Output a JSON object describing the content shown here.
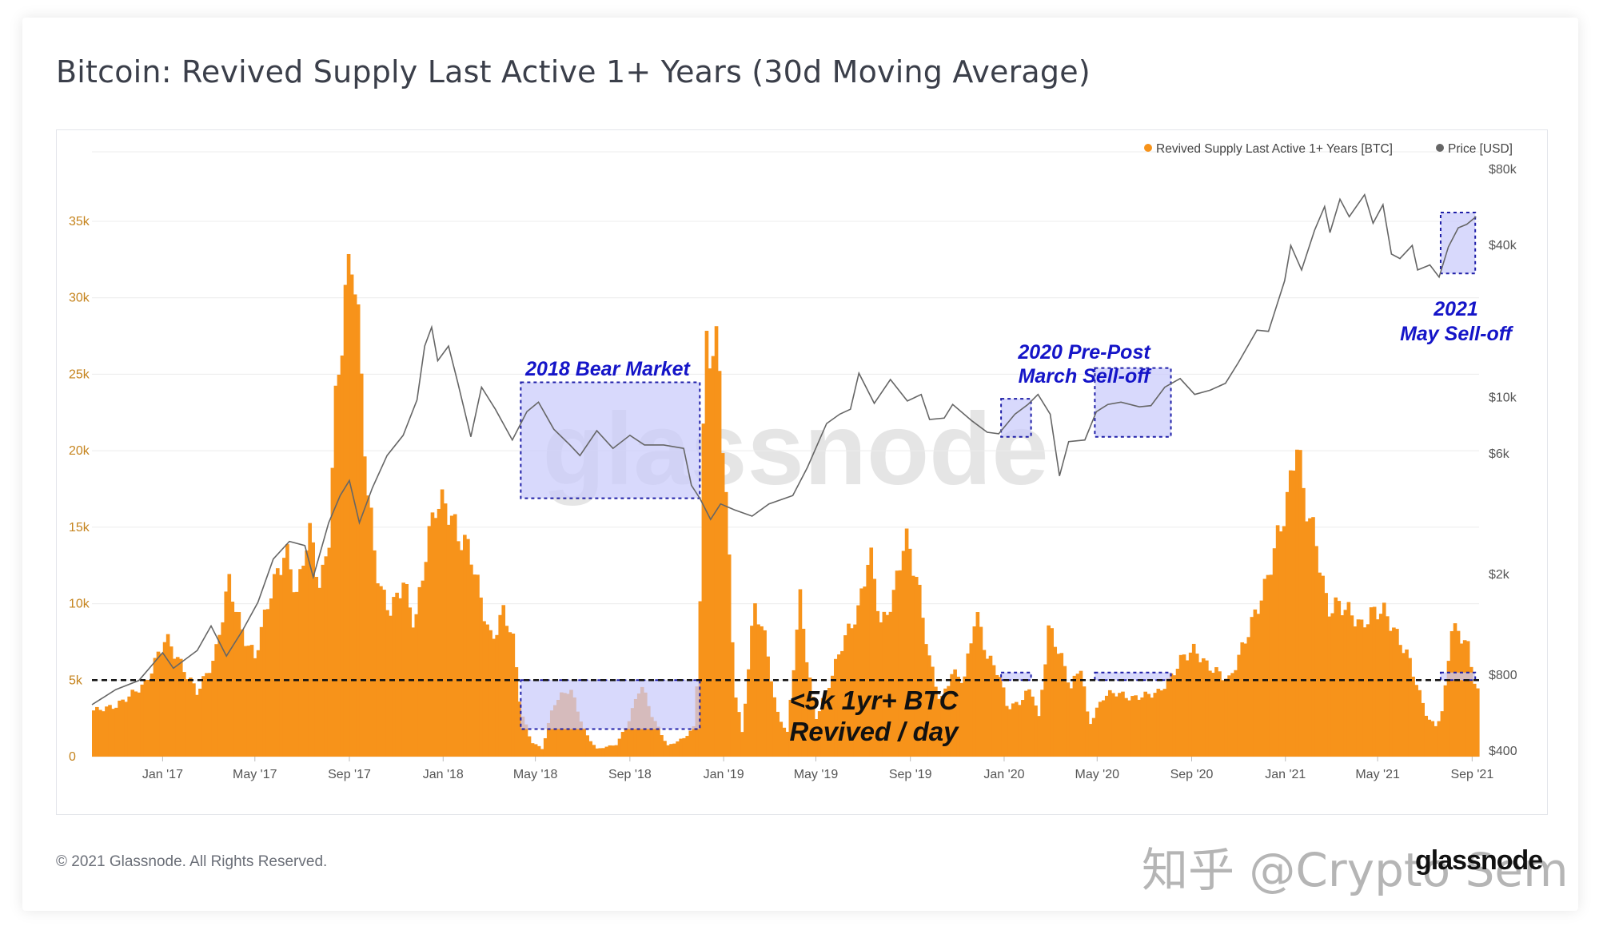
{
  "page": {
    "title": "Bitcoin: Revived Supply Last Active 1+ Years (30d Moving Average)",
    "footer": "© 2021 Glassnode. All Rights Reserved.",
    "watermark": "glassnode",
    "brand_logo": "glassnode",
    "overlay_watermark": "知乎 @Crypto Sem"
  },
  "colors": {
    "supply": "#f7931a",
    "price": "#666666",
    "box_fill": "#c9cbfb",
    "box_stroke": "#1f1fa8",
    "annotation": "#1515c8",
    "axis_left": "#c5831c",
    "axis": "#555555",
    "grid": "#ececec"
  },
  "chart_data": {
    "type": "bar",
    "title": "Bitcoin: Revived Supply Last Active 1+ Years (30d Moving Average)",
    "legend": {
      "placement": "top-right",
      "entries": [
        "Revived Supply Last Active 1+ Years [BTC]",
        "Price [USD]"
      ]
    },
    "x_ticks": [
      "Jan '17",
      "May '17",
      "Sep '17",
      "Jan '18",
      "May '18",
      "Sep '18",
      "Jan '19",
      "May '19",
      "Sep '19",
      "Jan '20",
      "May '20",
      "Sep '20",
      "Jan '21",
      "May '21",
      "Sep '21"
    ],
    "x_range": [
      "2016-10-01",
      "2021-09-10"
    ],
    "y_left": {
      "ticks": [
        "0",
        "5k",
        "10k",
        "15k",
        "20k",
        "25k",
        "30k",
        "35k"
      ],
      "range": [
        0,
        35000
      ]
    },
    "y_right": {
      "scale": "log",
      "ticks": [
        "$400",
        "$800",
        "$2k",
        "$6k",
        "$10k",
        "$40k",
        "$80k"
      ],
      "range": [
        400,
        80000
      ]
    },
    "threshold": {
      "value": 5000,
      "style": "dashed",
      "label_lines": [
        "<5k 1yr+ BTC",
        "Revived / day"
      ]
    },
    "series": [
      {
        "name": "Revived Supply Last Active 1+ Years [BTC]",
        "type": "bar",
        "points": [
          [
            "2016-10-01",
            3000
          ],
          [
            "2016-11-01",
            3300
          ],
          [
            "2016-12-10",
            4800
          ],
          [
            "2017-01-05",
            7800
          ],
          [
            "2017-01-25",
            6000
          ],
          [
            "2017-02-15",
            4200
          ],
          [
            "2017-03-10",
            6500
          ],
          [
            "2017-03-28",
            11500
          ],
          [
            "2017-04-15",
            8000
          ],
          [
            "2017-05-01",
            6500
          ],
          [
            "2017-05-20",
            10500
          ],
          [
            "2017-06-10",
            13500
          ],
          [
            "2017-06-25",
            10500
          ],
          [
            "2017-07-10",
            15000
          ],
          [
            "2017-07-25",
            11000
          ],
          [
            "2017-08-05",
            14000
          ],
          [
            "2017-08-15",
            24000
          ],
          [
            "2017-08-28",
            30500
          ],
          [
            "2017-09-05",
            33500
          ],
          [
            "2017-09-15",
            26000
          ],
          [
            "2017-09-25",
            17000
          ],
          [
            "2017-10-10",
            11000
          ],
          [
            "2017-10-25",
            9500
          ],
          [
            "2017-11-10",
            11500
          ],
          [
            "2017-11-25",
            8500
          ],
          [
            "2017-12-10",
            13500
          ],
          [
            "2017-12-22",
            16500
          ],
          [
            "2018-01-05",
            16500
          ],
          [
            "2018-01-20",
            14500
          ],
          [
            "2018-02-05",
            13500
          ],
          [
            "2018-02-20",
            10000
          ],
          [
            "2018-03-05",
            7500
          ],
          [
            "2018-03-20",
            9500
          ],
          [
            "2018-04-01",
            8000
          ],
          [
            "2018-04-12",
            3000
          ],
          [
            "2018-04-25",
            1000
          ],
          [
            "2018-05-10",
            500
          ],
          [
            "2018-05-25",
            3500
          ],
          [
            "2018-06-15",
            4500
          ],
          [
            "2018-07-05",
            1500
          ],
          [
            "2018-07-20",
            500
          ],
          [
            "2018-08-15",
            800
          ],
          [
            "2018-09-01",
            2500
          ],
          [
            "2018-09-15",
            4800
          ],
          [
            "2018-10-01",
            2500
          ],
          [
            "2018-10-20",
            700
          ],
          [
            "2018-11-10",
            1200
          ],
          [
            "2018-11-25",
            2000
          ],
          [
            "2018-12-01",
            10000
          ],
          [
            "2018-12-08",
            27000
          ],
          [
            "2018-12-25",
            26500
          ],
          [
            "2019-01-05",
            16000
          ],
          [
            "2019-01-15",
            4500
          ],
          [
            "2019-01-25",
            1500
          ],
          [
            "2019-02-10",
            10000
          ],
          [
            "2019-02-25",
            7500
          ],
          [
            "2019-03-10",
            3000
          ],
          [
            "2019-03-25",
            1500
          ],
          [
            "2019-04-10",
            10500
          ],
          [
            "2019-04-20",
            6000
          ],
          [
            "2019-05-01",
            2500
          ],
          [
            "2019-05-20",
            5000
          ],
          [
            "2019-06-05",
            7500
          ],
          [
            "2019-06-25",
            9500
          ],
          [
            "2019-07-10",
            13500
          ],
          [
            "2019-07-25",
            8500
          ],
          [
            "2019-08-10",
            10500
          ],
          [
            "2019-08-25",
            14500
          ],
          [
            "2019-09-10",
            11500
          ],
          [
            "2019-09-25",
            6500
          ],
          [
            "2019-10-10",
            3500
          ],
          [
            "2019-10-25",
            5500
          ],
          [
            "2019-11-10",
            5000
          ],
          [
            "2019-11-25",
            9500
          ],
          [
            "2019-12-10",
            6500
          ],
          [
            "2019-12-25",
            5500
          ],
          [
            "2020-01-05",
            3200
          ],
          [
            "2020-01-20",
            3500
          ],
          [
            "2020-02-05",
            4500
          ],
          [
            "2020-02-15",
            2500
          ],
          [
            "2020-02-28",
            8500
          ],
          [
            "2020-03-15",
            6500
          ],
          [
            "2020-03-28",
            4500
          ],
          [
            "2020-04-10",
            6000
          ],
          [
            "2020-04-20",
            2000
          ],
          [
            "2020-05-10",
            4000
          ],
          [
            "2020-05-25",
            4200
          ],
          [
            "2020-06-15",
            3800
          ],
          [
            "2020-07-01",
            4000
          ],
          [
            "2020-07-20",
            4200
          ],
          [
            "2020-08-05",
            5200
          ],
          [
            "2020-08-20",
            6500
          ],
          [
            "2020-09-05",
            7000
          ],
          [
            "2020-09-20",
            6000
          ],
          [
            "2020-10-05",
            5500
          ],
          [
            "2020-10-20",
            5000
          ],
          [
            "2020-11-01",
            6500
          ],
          [
            "2020-11-20",
            9000
          ],
          [
            "2020-12-05",
            11000
          ],
          [
            "2020-12-20",
            14000
          ],
          [
            "2021-01-05",
            17000
          ],
          [
            "2021-01-15",
            21000
          ],
          [
            "2021-01-25",
            17000
          ],
          [
            "2021-02-10",
            14000
          ],
          [
            "2021-02-25",
            9500
          ],
          [
            "2021-03-10",
            10000
          ],
          [
            "2021-03-25",
            9500
          ],
          [
            "2021-04-10",
            8500
          ],
          [
            "2021-04-25",
            9500
          ],
          [
            "2021-05-10",
            9500
          ],
          [
            "2021-05-25",
            8000
          ],
          [
            "2021-06-10",
            6500
          ],
          [
            "2021-06-25",
            4000
          ],
          [
            "2021-07-05",
            2500
          ],
          [
            "2021-07-15",
            2000
          ],
          [
            "2021-07-25",
            3000
          ],
          [
            "2021-08-05",
            8500
          ],
          [
            "2021-08-15",
            8000
          ],
          [
            "2021-08-25",
            7500
          ],
          [
            "2021-09-01",
            5500
          ],
          [
            "2021-09-10",
            4000
          ]
        ]
      },
      {
        "name": "Price [USD]",
        "type": "line",
        "points": [
          [
            "2016-10-01",
            610
          ],
          [
            "2016-11-01",
            700
          ],
          [
            "2016-12-01",
            760
          ],
          [
            "2017-01-01",
            980
          ],
          [
            "2017-01-15",
            850
          ],
          [
            "2017-02-15",
            1000
          ],
          [
            "2017-03-05",
            1250
          ],
          [
            "2017-03-25",
            950
          ],
          [
            "2017-04-15",
            1200
          ],
          [
            "2017-05-05",
            1550
          ],
          [
            "2017-05-25",
            2300
          ],
          [
            "2017-06-15",
            2700
          ],
          [
            "2017-07-05",
            2600
          ],
          [
            "2017-07-16",
            1950
          ],
          [
            "2017-08-05",
            3200
          ],
          [
            "2017-08-20",
            4100
          ],
          [
            "2017-09-01",
            4700
          ],
          [
            "2017-09-14",
            3200
          ],
          [
            "2017-10-01",
            4400
          ],
          [
            "2017-10-20",
            5900
          ],
          [
            "2017-11-10",
            7100
          ],
          [
            "2017-11-28",
            9800
          ],
          [
            "2017-12-08",
            16000
          ],
          [
            "2017-12-17",
            19000
          ],
          [
            "2017-12-25",
            14000
          ],
          [
            "2018-01-08",
            16000
          ],
          [
            "2018-01-20",
            11500
          ],
          [
            "2018-02-06",
            7000
          ],
          [
            "2018-02-20",
            11000
          ],
          [
            "2018-03-10",
            9000
          ],
          [
            "2018-04-01",
            6800
          ],
          [
            "2018-04-20",
            8800
          ],
          [
            "2018-05-05",
            9600
          ],
          [
            "2018-05-25",
            7500
          ],
          [
            "2018-06-15",
            6500
          ],
          [
            "2018-06-28",
            5900
          ],
          [
            "2018-07-20",
            7400
          ],
          [
            "2018-08-10",
            6300
          ],
          [
            "2018-09-01",
            7100
          ],
          [
            "2018-09-20",
            6500
          ],
          [
            "2018-10-15",
            6500
          ],
          [
            "2018-11-10",
            6300
          ],
          [
            "2018-11-20",
            4500
          ],
          [
            "2018-12-01",
            4000
          ],
          [
            "2018-12-15",
            3300
          ],
          [
            "2018-12-28",
            3800
          ],
          [
            "2019-01-15",
            3600
          ],
          [
            "2019-02-07",
            3400
          ],
          [
            "2019-03-01",
            3800
          ],
          [
            "2019-04-01",
            4100
          ],
          [
            "2019-04-20",
            5300
          ],
          [
            "2019-05-15",
            7900
          ],
          [
            "2019-06-01",
            8600
          ],
          [
            "2019-06-15",
            9000
          ],
          [
            "2019-06-26",
            12500
          ],
          [
            "2019-07-16",
            9500
          ],
          [
            "2019-08-06",
            11800
          ],
          [
            "2019-08-28",
            9700
          ],
          [
            "2019-09-15",
            10300
          ],
          [
            "2019-09-26",
            8200
          ],
          [
            "2019-10-15",
            8300
          ],
          [
            "2019-10-26",
            9400
          ],
          [
            "2019-11-20",
            8100
          ],
          [
            "2019-12-10",
            7300
          ],
          [
            "2019-12-25",
            7200
          ],
          [
            "2020-01-15",
            8600
          ],
          [
            "2020-02-01",
            9400
          ],
          [
            "2020-02-14",
            10300
          ],
          [
            "2020-03-01",
            8600
          ],
          [
            "2020-03-13",
            4900
          ],
          [
            "2020-03-25",
            6700
          ],
          [
            "2020-04-15",
            6800
          ],
          [
            "2020-04-30",
            8800
          ],
          [
            "2020-05-15",
            9400
          ],
          [
            "2020-06-01",
            9600
          ],
          [
            "2020-06-25",
            9200
          ],
          [
            "2020-07-10",
            9300
          ],
          [
            "2020-07-28",
            11000
          ],
          [
            "2020-08-17",
            11900
          ],
          [
            "2020-09-05",
            10300
          ],
          [
            "2020-09-25",
            10700
          ],
          [
            "2020-10-15",
            11400
          ],
          [
            "2020-11-01",
            13800
          ],
          [
            "2020-11-25",
            18500
          ],
          [
            "2020-12-10",
            18300
          ],
          [
            "2020-12-31",
            29000
          ],
          [
            "2021-01-08",
            40000
          ],
          [
            "2021-01-22",
            32000
          ],
          [
            "2021-02-08",
            46000
          ],
          [
            "2021-02-21",
            57000
          ],
          [
            "2021-02-28",
            45000
          ],
          [
            "2021-03-13",
            61000
          ],
          [
            "2021-03-25",
            52000
          ],
          [
            "2021-04-14",
            63500
          ],
          [
            "2021-04-25",
            49000
          ],
          [
            "2021-05-08",
            58000
          ],
          [
            "2021-05-19",
            37000
          ],
          [
            "2021-05-30",
            35500
          ],
          [
            "2021-06-15",
            40000
          ],
          [
            "2021-06-22",
            32000
          ],
          [
            "2021-07-08",
            33500
          ],
          [
            "2021-07-20",
            30000
          ],
          [
            "2021-08-01",
            39500
          ],
          [
            "2021-08-14",
            47000
          ],
          [
            "2021-08-25",
            48500
          ],
          [
            "2021-09-06",
            52000
          ]
        ]
      }
    ],
    "annotations": [
      {
        "id": "bear",
        "lines": [
          "2018 Bear Market"
        ],
        "price_box": [
          "2018-04-12",
          "2018-12-01",
          4000,
          11500
        ],
        "supply_box": [
          "2018-04-12",
          "2018-12-01",
          5000,
          1800
        ]
      },
      {
        "id": "march2020",
        "lines": [
          "2020 Pre-Post",
          "March Sell-off"
        ],
        "price_box": [
          "2019-12-28",
          "2020-02-05",
          7000,
          9900
        ],
        "supply_box": [
          "2019-12-28",
          "2020-02-05",
          5000,
          5500
        ],
        "extra_price_box": [
          "2020-04-28",
          "2020-08-05",
          7000,
          13100
        ],
        "extra_supply_box": [
          "2020-04-28",
          "2020-08-05",
          5000,
          5500
        ]
      },
      {
        "id": "may2021",
        "lines": [
          "2021",
          "May Sell-off"
        ],
        "price_box": [
          "2021-07-22",
          "2021-09-05",
          31000,
          54000
        ],
        "supply_box": [
          "2021-07-22",
          "2021-09-05",
          5000,
          5500
        ]
      }
    ]
  }
}
